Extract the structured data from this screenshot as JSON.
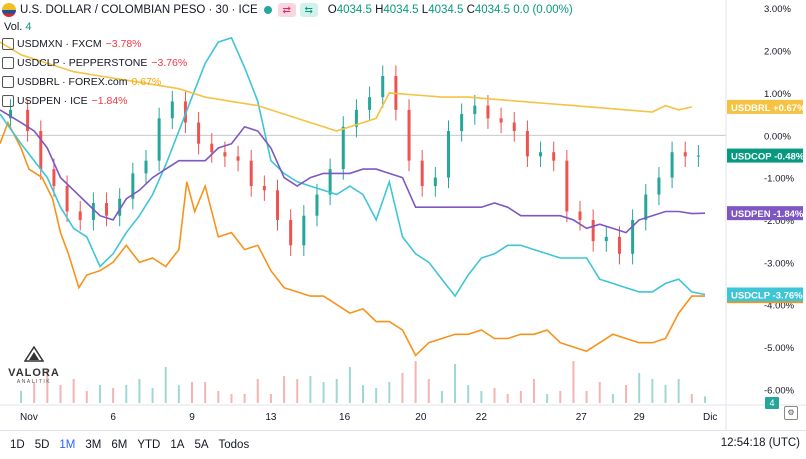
{
  "header": {
    "title": "U.S. DOLLAR / COLOMBIAN PESO · 30 · ICE",
    "open_label": "O",
    "open": "4034.5",
    "high_label": "H",
    "high": "4034.5",
    "low_label": "L",
    "low": "4034.5",
    "close_label": "C",
    "close": "4034.5",
    "change": "0.0 (0.00%)"
  },
  "volume_label": "Vol.",
  "volume_value": "4",
  "legend": [
    {
      "symbol": "USDMXN · FXCM",
      "change": "−3.78%",
      "sign": "neg"
    },
    {
      "symbol": "USDCLP · PEPPERSTONE",
      "change": "−3.76%",
      "sign": "neg"
    },
    {
      "symbol": "USDBRL · FOREX.com",
      "change": "0.67%",
      "sign": "pos"
    },
    {
      "symbol": "USDPEN · ICE",
      "change": "−1.84%",
      "sign": "neg"
    }
  ],
  "logo": {
    "name": "VALORA",
    "sub": "ANALITIK"
  },
  "timeframes": [
    {
      "label": "1D",
      "active": false
    },
    {
      "label": "5D",
      "active": false
    },
    {
      "label": "1M",
      "active": true
    },
    {
      "label": "3M",
      "active": false
    },
    {
      "label": "6M",
      "active": false
    },
    {
      "label": "YTD",
      "active": false
    },
    {
      "label": "1A",
      "active": false
    },
    {
      "label": "5A",
      "active": false
    },
    {
      "label": "Todos",
      "active": false
    }
  ],
  "clock": "12:54:18 (UTC)",
  "volume_badge": "4",
  "colors": {
    "up": "#26a69a",
    "down": "#ef5350",
    "USDMXN": "#f7931a",
    "USDCLP": "#3ec5d6",
    "USDBRL": "#f5c242",
    "USDPEN": "#7e57c2",
    "USDCOP": "#089981"
  },
  "chart_data": {
    "type": "line",
    "title": "U.S. DOLLAR / COLOMBIAN PESO · 30 · ICE",
    "yunit": "%",
    "ylim": [
      -6.3,
      3.1
    ],
    "y_ticks": [
      "3.00%",
      "2.00%",
      "1.00%",
      "0.00%",
      "-1.00%",
      "-2.00%",
      "-3.00%",
      "-4.00%",
      "-5.00%",
      "-6.00%"
    ],
    "y_tick_values": [
      3,
      2,
      1,
      0,
      -1,
      -2,
      -3,
      -4,
      -5,
      -6
    ],
    "x_ticks": [
      "Nov",
      "6",
      "9",
      "13",
      "16",
      "20",
      "22",
      "27",
      "29",
      "Dic"
    ],
    "x_tick_pos": [
      0.3,
      3.5,
      6.5,
      9.5,
      12.3,
      15.2,
      17.5,
      21.3,
      23.5,
      26.2
    ],
    "xlim": [
      -0.8,
      26.8
    ],
    "series": [
      {
        "name": "USDMXN",
        "end_label": "-3.78%",
        "color": "#f7931a",
        "x": [
          -0.8,
          -0.5,
          0,
          0.3,
          0.8,
          1.2,
          1.5,
          1.8,
          2.2,
          2.5,
          3,
          3.5,
          4,
          4.5,
          5,
          5.5,
          6,
          6.3,
          6.6,
          7,
          7.5,
          8,
          8.5,
          9,
          9.5,
          10,
          10.5,
          11,
          11.5,
          12,
          12.5,
          13,
          13.5,
          14,
          14.5,
          15,
          15.5,
          16,
          16.5,
          17,
          17.5,
          18,
          18.5,
          19,
          19.5,
          20,
          20.5,
          21,
          21.5,
          22,
          22.5,
          23,
          23.5,
          24,
          24.5,
          25,
          25.5,
          26
        ],
        "y": [
          -0.2,
          0.3,
          -0.3,
          -0.8,
          -1.0,
          -1.5,
          -2.3,
          -2.8,
          -3.6,
          -3.3,
          -3.2,
          -3.0,
          -2.6,
          -3.0,
          -2.9,
          -3.1,
          -2.7,
          -1.1,
          -1.8,
          -1.2,
          -2.4,
          -2.3,
          -2.7,
          -2.6,
          -3.2,
          -3.6,
          -3.7,
          -3.8,
          -3.8,
          -4.0,
          -4.2,
          -4.1,
          -4.4,
          -4.4,
          -4.6,
          -5.2,
          -4.9,
          -4.8,
          -4.7,
          -4.7,
          -4.6,
          -4.8,
          -4.8,
          -4.7,
          -4.7,
          -4.6,
          -4.9,
          -5.0,
          -5.1,
          -4.9,
          -4.7,
          -4.8,
          -4.9,
          -4.9,
          -4.8,
          -4.2,
          -3.8,
          -3.8
        ]
      },
      {
        "name": "USDCLP",
        "end_label": "-3.76%",
        "color": "#3ec5d6",
        "x": [
          -0.8,
          0,
          0.5,
          1,
          1.5,
          2,
          2.5,
          3,
          3.5,
          4,
          4.5,
          5,
          5.5,
          6,
          6.5,
          7,
          7.5,
          8,
          8.5,
          9,
          9.5,
          10,
          10.5,
          11,
          11.5,
          12,
          12.5,
          13,
          13.5,
          14,
          14.5,
          15,
          15.5,
          16,
          16.5,
          17,
          17.5,
          18,
          18.5,
          19,
          19.5,
          20,
          20.5,
          21,
          21.5,
          22,
          22.5,
          23,
          23.5,
          24,
          24.5,
          25,
          25.5,
          26
        ],
        "y": [
          0.5,
          -0.2,
          -0.6,
          -1.0,
          -1.7,
          -2.2,
          -2.4,
          -3.1,
          -2.8,
          -2.3,
          -1.9,
          -1.4,
          -0.7,
          0.1,
          0.9,
          1.7,
          2.2,
          2.3,
          1.6,
          0.8,
          -0.6,
          -0.9,
          -1.1,
          -1.2,
          -1.3,
          -1.4,
          -1.2,
          -1.4,
          -2.0,
          -1.1,
          -2.4,
          -2.8,
          -3.0,
          -3.4,
          -3.8,
          -3.3,
          -2.9,
          -2.8,
          -2.6,
          -2.6,
          -2.7,
          -2.8,
          -2.9,
          -2.9,
          -2.9,
          -3.4,
          -3.5,
          -3.6,
          -3.7,
          -3.7,
          -3.5,
          -3.4,
          -3.7,
          -3.76
        ]
      },
      {
        "name": "USDBRL",
        "end_label": "+0.67%",
        "color": "#f5c242",
        "x": [
          -0.8,
          0,
          1,
          2,
          3,
          4,
          5,
          6,
          7,
          8,
          9,
          10,
          11,
          12,
          13,
          13.5,
          14,
          15,
          16,
          17,
          18,
          19,
          20,
          21,
          22,
          23,
          24,
          24.5,
          25,
          25.5
        ],
        "y": [
          2.2,
          1.9,
          1.7,
          1.5,
          1.4,
          1.3,
          1.2,
          1.1,
          0.9,
          0.8,
          0.7,
          0.5,
          0.3,
          0.1,
          0.3,
          0.4,
          1.0,
          0.95,
          0.9,
          0.9,
          0.85,
          0.8,
          0.75,
          0.7,
          0.65,
          0.6,
          0.55,
          0.7,
          0.6,
          0.67
        ]
      },
      {
        "name": "USDPEN",
        "end_label": "-1.84%",
        "color": "#7e57c2",
        "x": [
          -0.8,
          0,
          0.5,
          1,
          1.5,
          2,
          2.5,
          3,
          3.5,
          4,
          4.5,
          5,
          5.5,
          6,
          6.5,
          7,
          7.5,
          8,
          8.5,
          9,
          9.5,
          10,
          10.5,
          11,
          11.5,
          12,
          12.5,
          13,
          13.5,
          14,
          14.5,
          15,
          15.5,
          16,
          16.5,
          17,
          17.5,
          18,
          18.5,
          19,
          19.5,
          20,
          20.5,
          21,
          21.5,
          22,
          22.5,
          23,
          23.5,
          24,
          24.5,
          25,
          25.5,
          26
        ],
        "y": [
          0.6,
          0.3,
          0.1,
          -0.3,
          -1.0,
          -1.3,
          -1.6,
          -1.9,
          -2.0,
          -1.5,
          -1.3,
          -1.0,
          -0.8,
          -0.6,
          -0.6,
          -0.6,
          -0.3,
          -0.2,
          0.2,
          0.1,
          -0.3,
          -1.0,
          -1.2,
          -1.0,
          -0.9,
          -0.9,
          -0.9,
          -0.8,
          -0.8,
          -0.9,
          -1.0,
          -1.7,
          -1.7,
          -1.7,
          -1.7,
          -1.7,
          -1.7,
          -1.6,
          -1.7,
          -1.9,
          -1.9,
          -1.9,
          -1.9,
          -2.0,
          -2.2,
          -2.1,
          -2.2,
          -2.3,
          -2.0,
          -1.9,
          -1.8,
          -1.8,
          -1.85,
          -1.84
        ]
      },
      {
        "name": "USDCOP",
        "end_label": "-0.48%",
        "color": "#089981",
        "x": [
          -0.8,
          0,
          0.5,
          1,
          1.5,
          2,
          2.5,
          3,
          3.5,
          4,
          4.5,
          5,
          5.5,
          6,
          6.5,
          7,
          7.5,
          8,
          8.5,
          9,
          9.5,
          10,
          10.5,
          11,
          11.5,
          12,
          12.5,
          13,
          13.5,
          14,
          14.5,
          15,
          15.5,
          16,
          16.5,
          17,
          17.5,
          18,
          18.5,
          19,
          19.5,
          20,
          20.5,
          21,
          21.5,
          22,
          22.5,
          23,
          23.5,
          24,
          24.5,
          25,
          25.5,
          26
        ],
        "y": [
          0.4,
          0.6,
          0.1,
          -0.8,
          -1.2,
          -1.8,
          -2.0,
          -1.6,
          -1.9,
          -1.5,
          -0.9,
          -0.6,
          0.4,
          0.8,
          0.3,
          -0.2,
          -0.4,
          -0.5,
          -0.6,
          -1.2,
          -1.3,
          -2.0,
          -2.6,
          -1.9,
          -1.4,
          -0.8,
          0.2,
          0.6,
          0.9,
          1.4,
          0.6,
          -0.6,
          -1.2,
          -1.0,
          0.1,
          0.5,
          0.7,
          0.4,
          0.3,
          0.1,
          -0.5,
          -0.4,
          -0.6,
          -1.8,
          -2.0,
          -2.5,
          -2.4,
          -2.8,
          -2.0,
          -1.4,
          -1.0,
          -0.4,
          -0.5,
          -0.48
        ]
      }
    ]
  }
}
